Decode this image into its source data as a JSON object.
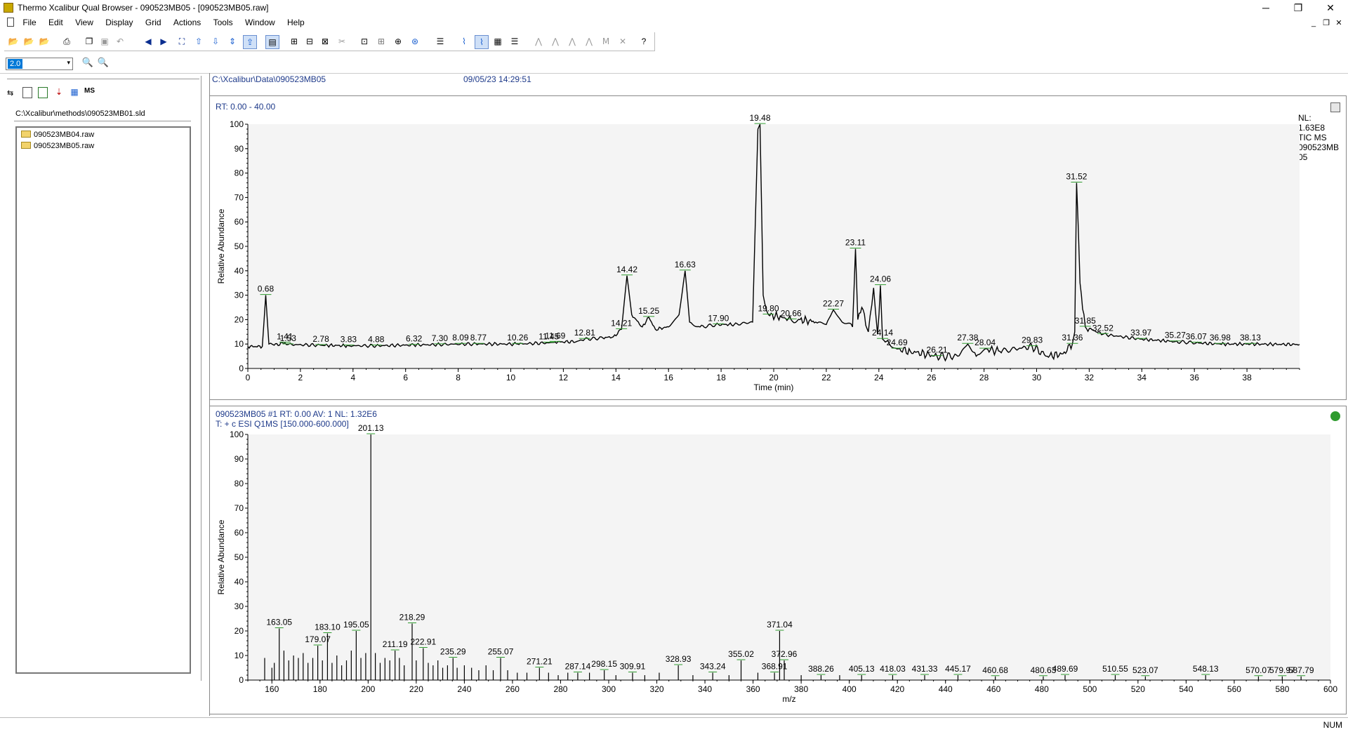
{
  "window": {
    "title": "Thermo Xcalibur Qual Browser - 090523MB05 - [090523MB05.raw]",
    "minimize": "─",
    "restore": "❐",
    "close": "✕"
  },
  "menu": [
    "File",
    "Edit",
    "View",
    "Display",
    "Grid",
    "Actions",
    "Tools",
    "Window",
    "Help"
  ],
  "mdi_controls": {
    "minimize": "_",
    "restore": "❐",
    "close": "✕"
  },
  "zoom": {
    "value": "2.0"
  },
  "left_pane": {
    "method_path": "C:\\Xcalibur\\methods\\090523MB01.sld",
    "files": [
      "090523MB04.raw",
      "090523MB05.raw"
    ]
  },
  "file_header": {
    "path": "C:\\Xcalibur\\Data\\090523MB05",
    "date": "09/05/23 14:29:51"
  },
  "chromatogram": {
    "rt_label": "RT: 0.00 - 40.00",
    "nl_lines": [
      "NL:",
      "1.63E8",
      "TIC  MS",
      "090523MB",
      "05"
    ]
  },
  "spectrum": {
    "header1": "090523MB05 #1  RT: 0.00  AV: 1  NL: 1.32E6",
    "header2": "T: + c ESI Q1MS [150.000-600.000]"
  },
  "chart_data": [
    {
      "type": "line",
      "xlabel": "Time (min)",
      "ylabel": "Relative Abundance",
      "xlim": [
        0,
        40
      ],
      "ylim": [
        0,
        100
      ],
      "xticks": [
        0,
        2,
        4,
        6,
        8,
        10,
        12,
        14,
        16,
        18,
        20,
        22,
        24,
        26,
        28,
        30,
        32,
        34,
        36,
        38
      ],
      "yticks": [
        0,
        10,
        20,
        30,
        40,
        50,
        60,
        70,
        80,
        90,
        100
      ],
      "x": [
        0,
        0.55,
        0.68,
        0.8,
        1.0,
        1.41,
        1.53,
        2.78,
        3.83,
        4.88,
        6.32,
        7.3,
        8.09,
        8.77,
        10.26,
        11.45,
        11.69,
        12.5,
        12.81,
        13.5,
        13.9,
        14.21,
        14.42,
        14.6,
        15.0,
        15.25,
        15.5,
        16.0,
        16.4,
        16.63,
        16.8,
        17.2,
        17.9,
        18.5,
        19.2,
        19.4,
        19.48,
        19.6,
        19.8,
        20.3,
        20.66,
        21.0,
        21.6,
        22.0,
        22.27,
        22.6,
        23.0,
        23.11,
        23.2,
        23.35,
        23.6,
        23.8,
        23.95,
        24.06,
        24.14,
        24.4,
        24.69,
        25.2,
        26.21,
        27.0,
        27.38,
        27.7,
        28.04,
        28.6,
        29.2,
        29.83,
        30.4,
        31.0,
        31.36,
        31.45,
        31.52,
        31.65,
        31.85,
        32.52,
        33.97,
        35.27,
        36.07,
        36.98,
        38.13,
        40.0
      ],
      "y": [
        9,
        9,
        30,
        10,
        9.5,
        10.5,
        9.8,
        9.5,
        9.3,
        9.3,
        9.6,
        9.8,
        10,
        10,
        10,
        10.5,
        10.8,
        11,
        12,
        12.5,
        13,
        16,
        38,
        22,
        17,
        21,
        16,
        17,
        22,
        40,
        19,
        17,
        18,
        18,
        19,
        98,
        100,
        30,
        22,
        21,
        20,
        20,
        19,
        18,
        24,
        19,
        17,
        49,
        20,
        25,
        15,
        33,
        14,
        34,
        12,
        10,
        8,
        7,
        5,
        5,
        10,
        5,
        8,
        7,
        8,
        9,
        5,
        6,
        10,
        15,
        76,
        35,
        17,
        14,
        12,
        11,
        10.5,
        10,
        10,
        9.8
      ],
      "peak_labels": [
        {
          "x": 0.68,
          "y": 30,
          "text": "0.68"
        },
        {
          "x": 1.41,
          "y": 10.5,
          "text": "1.41"
        },
        {
          "x": 1.53,
          "y": 9.8,
          "text": "1.53"
        },
        {
          "x": 2.78,
          "y": 9.5,
          "text": "2.78"
        },
        {
          "x": 3.83,
          "y": 9.3,
          "text": "3.83"
        },
        {
          "x": 4.88,
          "y": 9.3,
          "text": "4.88"
        },
        {
          "x": 6.32,
          "y": 9.6,
          "text": "6.32"
        },
        {
          "x": 7.3,
          "y": 9.8,
          "text": "7.30"
        },
        {
          "x": 8.09,
          "y": 10,
          "text": "8.09"
        },
        {
          "x": 8.77,
          "y": 10,
          "text": "8.77"
        },
        {
          "x": 10.26,
          "y": 10,
          "text": "10.26"
        },
        {
          "x": 11.45,
          "y": 10.5,
          "text": "11.45"
        },
        {
          "x": 11.69,
          "y": 10.8,
          "text": "11.69"
        },
        {
          "x": 12.81,
          "y": 12,
          "text": "12.81"
        },
        {
          "x": 14.21,
          "y": 16,
          "text": "14.21"
        },
        {
          "x": 14.42,
          "y": 38,
          "text": "14.42"
        },
        {
          "x": 15.25,
          "y": 21,
          "text": "15.25"
        },
        {
          "x": 16.63,
          "y": 40,
          "text": "16.63"
        },
        {
          "x": 17.9,
          "y": 18,
          "text": "17.90"
        },
        {
          "x": 19.48,
          "y": 100,
          "text": "19.48"
        },
        {
          "x": 19.8,
          "y": 22,
          "text": "19.80"
        },
        {
          "x": 20.66,
          "y": 20,
          "text": "20.66"
        },
        {
          "x": 22.27,
          "y": 24,
          "text": "22.27"
        },
        {
          "x": 23.11,
          "y": 49,
          "text": "23.11"
        },
        {
          "x": 24.06,
          "y": 34,
          "text": "24.06"
        },
        {
          "x": 24.14,
          "y": 12,
          "text": "24.14"
        },
        {
          "x": 24.69,
          "y": 8,
          "text": "24.69"
        },
        {
          "x": 26.21,
          "y": 5,
          "text": "26.21"
        },
        {
          "x": 27.38,
          "y": 10,
          "text": "27.38"
        },
        {
          "x": 28.04,
          "y": 8,
          "text": "28.04"
        },
        {
          "x": 29.83,
          "y": 9,
          "text": "29.83"
        },
        {
          "x": 31.36,
          "y": 10,
          "text": "31.36"
        },
        {
          "x": 31.52,
          "y": 76,
          "text": "31.52"
        },
        {
          "x": 31.85,
          "y": 17,
          "text": "31.85"
        },
        {
          "x": 32.52,
          "y": 14,
          "text": "32.52"
        },
        {
          "x": 33.97,
          "y": 12,
          "text": "33.97"
        },
        {
          "x": 35.27,
          "y": 11,
          "text": "35.27"
        },
        {
          "x": 36.07,
          "y": 10.5,
          "text": "36.07"
        },
        {
          "x": 36.98,
          "y": 10,
          "text": "36.98"
        },
        {
          "x": 38.13,
          "y": 10,
          "text": "38.13"
        }
      ]
    },
    {
      "type": "bar",
      "xlabel": "m/z",
      "ylabel": "Relative Abundance",
      "xlim": [
        150,
        600
      ],
      "ylim": [
        0,
        100
      ],
      "xticks": [
        160,
        180,
        200,
        220,
        240,
        260,
        280,
        300,
        320,
        340,
        360,
        380,
        400,
        420,
        440,
        460,
        480,
        500,
        520,
        540,
        560,
        580,
        600
      ],
      "yticks": [
        0,
        10,
        20,
        30,
        40,
        50,
        60,
        70,
        80,
        90,
        100
      ],
      "sticks": [
        {
          "x": 157,
          "y": 9
        },
        {
          "x": 160,
          "y": 5
        },
        {
          "x": 161,
          "y": 7
        },
        {
          "x": 163.05,
          "y": 21
        },
        {
          "x": 165,
          "y": 12
        },
        {
          "x": 167,
          "y": 8
        },
        {
          "x": 169,
          "y": 10
        },
        {
          "x": 171,
          "y": 9
        },
        {
          "x": 173,
          "y": 11
        },
        {
          "x": 175,
          "y": 7
        },
        {
          "x": 177,
          "y": 9
        },
        {
          "x": 179.07,
          "y": 14
        },
        {
          "x": 181,
          "y": 8
        },
        {
          "x": 183.1,
          "y": 19
        },
        {
          "x": 185,
          "y": 7
        },
        {
          "x": 187,
          "y": 10
        },
        {
          "x": 189,
          "y": 6
        },
        {
          "x": 191,
          "y": 8
        },
        {
          "x": 193,
          "y": 12
        },
        {
          "x": 195.05,
          "y": 20
        },
        {
          "x": 197,
          "y": 9
        },
        {
          "x": 199,
          "y": 11
        },
        {
          "x": 201.13,
          "y": 100
        },
        {
          "x": 203,
          "y": 11
        },
        {
          "x": 205,
          "y": 7
        },
        {
          "x": 207,
          "y": 9
        },
        {
          "x": 209,
          "y": 8
        },
        {
          "x": 211.19,
          "y": 12
        },
        {
          "x": 213,
          "y": 9
        },
        {
          "x": 215,
          "y": 6
        },
        {
          "x": 218.29,
          "y": 23
        },
        {
          "x": 220,
          "y": 8
        },
        {
          "x": 222.91,
          "y": 13
        },
        {
          "x": 225,
          "y": 7
        },
        {
          "x": 227,
          "y": 6
        },
        {
          "x": 229,
          "y": 8
        },
        {
          "x": 231,
          "y": 5
        },
        {
          "x": 233,
          "y": 6
        },
        {
          "x": 235.29,
          "y": 9
        },
        {
          "x": 237,
          "y": 5
        },
        {
          "x": 240,
          "y": 6
        },
        {
          "x": 243,
          "y": 5
        },
        {
          "x": 246,
          "y": 4
        },
        {
          "x": 249,
          "y": 6
        },
        {
          "x": 252,
          "y": 4
        },
        {
          "x": 255.07,
          "y": 9
        },
        {
          "x": 258,
          "y": 4
        },
        {
          "x": 262,
          "y": 3
        },
        {
          "x": 266,
          "y": 3
        },
        {
          "x": 271.21,
          "y": 5
        },
        {
          "x": 275,
          "y": 3
        },
        {
          "x": 279,
          "y": 2
        },
        {
          "x": 283,
          "y": 3
        },
        {
          "x": 287.14,
          "y": 3
        },
        {
          "x": 292,
          "y": 3
        },
        {
          "x": 298.15,
          "y": 4
        },
        {
          "x": 303,
          "y": 2
        },
        {
          "x": 309.91,
          "y": 3
        },
        {
          "x": 315,
          "y": 2
        },
        {
          "x": 321,
          "y": 3
        },
        {
          "x": 328.93,
          "y": 6
        },
        {
          "x": 335,
          "y": 2
        },
        {
          "x": 343.24,
          "y": 3
        },
        {
          "x": 350,
          "y": 2
        },
        {
          "x": 355.02,
          "y": 8
        },
        {
          "x": 362,
          "y": 3
        },
        {
          "x": 368.91,
          "y": 3
        },
        {
          "x": 371.04,
          "y": 20
        },
        {
          "x": 372.96,
          "y": 8
        },
        {
          "x": 380,
          "y": 2
        },
        {
          "x": 388.26,
          "y": 2
        },
        {
          "x": 396,
          "y": 2
        },
        {
          "x": 405.13,
          "y": 2
        },
        {
          "x": 418.03,
          "y": 2
        },
        {
          "x": 431.33,
          "y": 2
        },
        {
          "x": 445.17,
          "y": 2
        },
        {
          "x": 460.68,
          "y": 1.5
        },
        {
          "x": 480.63,
          "y": 1.5
        },
        {
          "x": 489.69,
          "y": 2
        },
        {
          "x": 510.55,
          "y": 2
        },
        {
          "x": 523.07,
          "y": 1.5
        },
        {
          "x": 548.13,
          "y": 2
        },
        {
          "x": 570.07,
          "y": 1.5
        },
        {
          "x": 579.97,
          "y": 1.5
        },
        {
          "x": 587.79,
          "y": 1.5
        }
      ],
      "peak_labels": [
        {
          "x": 163.05,
          "y": 21,
          "text": "163.05"
        },
        {
          "x": 179.07,
          "y": 14,
          "text": "179.07"
        },
        {
          "x": 183.1,
          "y": 19,
          "text": "183.10"
        },
        {
          "x": 195.05,
          "y": 20,
          "text": "195.05"
        },
        {
          "x": 201.13,
          "y": 100,
          "text": "201.13"
        },
        {
          "x": 211.19,
          "y": 12,
          "text": "211.19"
        },
        {
          "x": 218.29,
          "y": 23,
          "text": "218.29"
        },
        {
          "x": 222.91,
          "y": 13,
          "text": "222.91"
        },
        {
          "x": 235.29,
          "y": 9,
          "text": "235.29"
        },
        {
          "x": 255.07,
          "y": 9,
          "text": "255.07"
        },
        {
          "x": 271.21,
          "y": 5,
          "text": "271.21"
        },
        {
          "x": 287.14,
          "y": 3,
          "text": "287.14"
        },
        {
          "x": 298.15,
          "y": 4,
          "text": "298.15"
        },
        {
          "x": 309.91,
          "y": 3,
          "text": "309.91"
        },
        {
          "x": 328.93,
          "y": 6,
          "text": "328.93"
        },
        {
          "x": 343.24,
          "y": 3,
          "text": "343.24"
        },
        {
          "x": 355.02,
          "y": 8,
          "text": "355.02"
        },
        {
          "x": 368.91,
          "y": 3,
          "text": "368.91"
        },
        {
          "x": 371.04,
          "y": 20,
          "text": "371.04"
        },
        {
          "x": 372.96,
          "y": 8,
          "text": "372.96"
        },
        {
          "x": 388.26,
          "y": 2,
          "text": "388.26"
        },
        {
          "x": 405.13,
          "y": 2,
          "text": "405.13"
        },
        {
          "x": 418.03,
          "y": 2,
          "text": "418.03"
        },
        {
          "x": 431.33,
          "y": 2,
          "text": "431.33"
        },
        {
          "x": 445.17,
          "y": 2,
          "text": "445.17"
        },
        {
          "x": 460.68,
          "y": 1.5,
          "text": "460.68"
        },
        {
          "x": 480.63,
          "y": 1.5,
          "text": "480.63"
        },
        {
          "x": 489.69,
          "y": 2,
          "text": "489.69"
        },
        {
          "x": 510.55,
          "y": 2,
          "text": "510.55"
        },
        {
          "x": 523.07,
          "y": 1.5,
          "text": "523.07"
        },
        {
          "x": 548.13,
          "y": 2,
          "text": "548.13"
        },
        {
          "x": 570.07,
          "y": 1.5,
          "text": "570.07"
        },
        {
          "x": 579.97,
          "y": 1.5,
          "text": "579.97"
        },
        {
          "x": 587.79,
          "y": 1.5,
          "text": "587.79"
        }
      ]
    }
  ],
  "statusbar": {
    "num": "NUM"
  }
}
